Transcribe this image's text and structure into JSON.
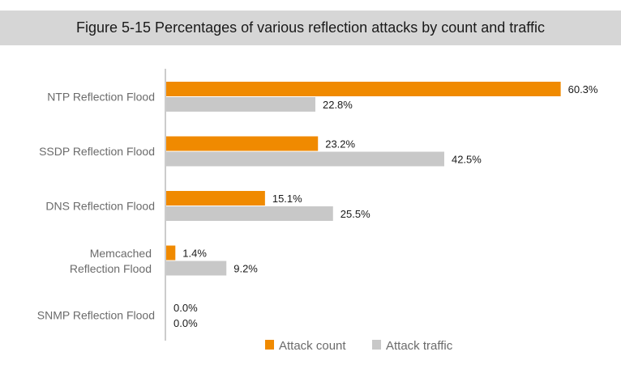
{
  "chart_data": {
    "type": "bar",
    "orientation": "horizontal",
    "title": "Figure 5-15 Percentages of various reflection attacks by count and traffic",
    "categories": [
      [
        "NTP Reflection Flood"
      ],
      [
        "SSDP Reflection Flood"
      ],
      [
        "DNS Reflection Flood"
      ],
      [
        "Memcached",
        "Reflection Flood"
      ],
      [
        "SNMP Reflection Flood"
      ]
    ],
    "series": [
      {
        "name": "Attack count",
        "color": "#f08a00",
        "values": [
          60.3,
          23.2,
          15.1,
          1.4,
          0.0
        ],
        "labels": [
          "60.3%",
          "23.2%",
          "15.1%",
          "1.4%",
          "0.0%"
        ]
      },
      {
        "name": "Attack traffic",
        "color": "#c8c8c8",
        "values": [
          22.8,
          42.5,
          25.5,
          9.2,
          0.0
        ],
        "labels": [
          "22.8%",
          "42.5%",
          "25.5%",
          "9.2%",
          "0.0%"
        ]
      }
    ],
    "xlim": [
      0,
      62
    ],
    "grid": false,
    "legend_position": "bottom"
  }
}
